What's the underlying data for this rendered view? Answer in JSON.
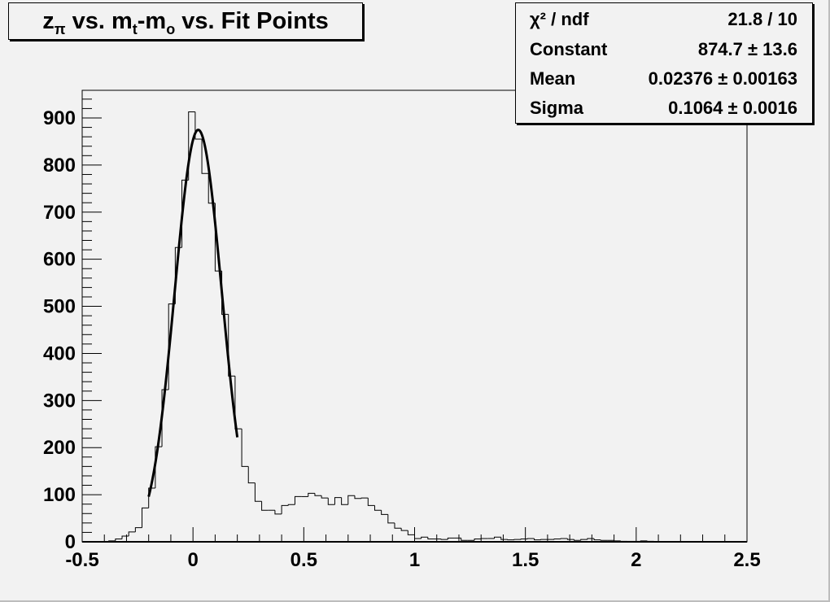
{
  "chart_data": {
    "type": "histogram",
    "title": "z_π vs. m_t-m_o vs. Fit Points",
    "title_parts": {
      "z": "z",
      "pi": "π",
      "vs1": " vs. m",
      "t": "t",
      "dash": "-m",
      "o": "o",
      "vs2": " vs. Fit Points"
    },
    "xlim": [
      -0.5,
      2.5
    ],
    "ylim": [
      0,
      955
    ],
    "bin_width": 0.03,
    "x_ticks": [
      "-0.5",
      "0",
      "0.5",
      "1",
      "1.5",
      "2",
      "2.5"
    ],
    "y_ticks": [
      "0",
      "100",
      "200",
      "300",
      "400",
      "500",
      "600",
      "700",
      "800",
      "900"
    ],
    "bin_values": [
      0,
      0,
      0,
      0,
      2,
      6,
      12,
      21,
      30,
      72,
      114,
      202,
      323,
      505,
      625,
      768,
      913,
      855,
      782,
      719,
      575,
      483,
      352,
      240,
      160,
      125,
      86,
      67,
      67,
      59,
      77,
      79,
      96,
      96,
      103,
      98,
      93,
      79,
      94,
      79,
      98,
      92,
      93,
      77,
      67,
      58,
      40,
      29,
      24,
      15,
      7,
      10,
      6,
      6,
      5,
      8,
      8,
      3,
      3,
      6,
      7,
      7,
      10,
      5,
      4,
      5,
      6,
      7,
      4,
      5,
      5,
      6,
      7,
      5,
      3,
      5,
      7,
      4,
      3,
      3,
      2,
      1,
      1,
      1,
      2,
      1,
      0,
      0,
      0,
      0,
      0,
      0,
      0,
      0,
      0,
      0,
      0,
      0,
      0,
      0
    ],
    "fit": {
      "function": "gaus",
      "constant": 874.7,
      "mean": 0.02376,
      "sigma": 0.1064,
      "range": [
        -0.2,
        0.2
      ]
    },
    "grid": false,
    "legend": "none"
  },
  "stats": {
    "rows": [
      {
        "label": "χ² / ndf",
        "value": "21.8 / 10"
      },
      {
        "label": "Constant",
        "value": "874.7 ± 13.6"
      },
      {
        "label": "Mean",
        "value": "0.02376 ± 0.00163"
      },
      {
        "label": "Sigma",
        "value": "0.1064 ± 0.0016"
      }
    ]
  }
}
